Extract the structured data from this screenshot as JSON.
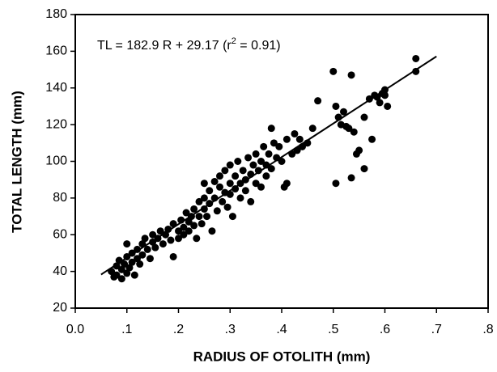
{
  "chart_data": {
    "type": "scatter",
    "xlabel": "RADIUS OF OTOLITH (mm)",
    "ylabel": "TOTAL LENGTH (mm)",
    "annotation": [
      "TL = 182.9 R  + 29.17 (r",
      "2",
      " = 0.91)"
    ],
    "color": "#000000",
    "xlim": [
      0,
      0.8
    ],
    "xticks": [
      {
        "value": 0,
        "label": "0.0"
      },
      {
        "value": 0.1,
        "label": ".1"
      },
      {
        "value": 0.2,
        "label": ".2"
      },
      {
        "value": 0.3,
        "label": ".3"
      },
      {
        "value": 0.4,
        "label": ".4"
      },
      {
        "value": 0.5,
        "label": ".5"
      },
      {
        "value": 0.6,
        "label": ".6"
      },
      {
        "value": 0.7,
        "label": ".7"
      },
      {
        "value": 0.8,
        "label": ".8"
      }
    ],
    "ylim": [
      20,
      180
    ],
    "yticks": [
      20,
      40,
      60,
      80,
      100,
      120,
      140,
      160,
      180
    ],
    "fit_line": {
      "x": [
        0.05,
        0.7
      ],
      "y": [
        38.3,
        157.2
      ]
    },
    "x": [
      0.07,
      0.075,
      0.08,
      0.08,
      0.085,
      0.09,
      0.09,
      0.095,
      0.1,
      0.1,
      0.1,
      0.105,
      0.11,
      0.11,
      0.115,
      0.12,
      0.12,
      0.125,
      0.13,
      0.13,
      0.135,
      0.14,
      0.145,
      0.15,
      0.15,
      0.155,
      0.16,
      0.165,
      0.17,
      0.175,
      0.18,
      0.185,
      0.19,
      0.19,
      0.2,
      0.2,
      0.205,
      0.21,
      0.21,
      0.215,
      0.22,
      0.22,
      0.225,
      0.23,
      0.23,
      0.235,
      0.24,
      0.24,
      0.245,
      0.25,
      0.25,
      0.25,
      0.255,
      0.26,
      0.26,
      0.265,
      0.27,
      0.27,
      0.275,
      0.28,
      0.28,
      0.285,
      0.29,
      0.29,
      0.295,
      0.3,
      0.3,
      0.3,
      0.305,
      0.31,
      0.31,
      0.315,
      0.32,
      0.32,
      0.325,
      0.33,
      0.33,
      0.335,
      0.34,
      0.34,
      0.345,
      0.35,
      0.35,
      0.355,
      0.36,
      0.36,
      0.365,
      0.37,
      0.37,
      0.375,
      0.38,
      0.38,
      0.385,
      0.39,
      0.395,
      0.4,
      0.405,
      0.41,
      0.41,
      0.42,
      0.425,
      0.43,
      0.435,
      0.44,
      0.45,
      0.46,
      0.47,
      0.5,
      0.505,
      0.505,
      0.51,
      0.515,
      0.52,
      0.525,
      0.53,
      0.535,
      0.535,
      0.54,
      0.545,
      0.55,
      0.56,
      0.56,
      0.57,
      0.575,
      0.58,
      0.585,
      0.59,
      0.595,
      0.6,
      0.6,
      0.605,
      0.66,
      0.66
    ],
    "values": [
      40,
      37,
      43,
      38,
      46,
      41,
      36,
      44,
      48,
      39,
      55,
      42,
      50,
      45,
      38,
      52,
      47,
      44,
      55,
      49,
      58,
      52,
      47,
      56,
      60,
      53,
      58,
      62,
      55,
      60,
      63,
      57,
      48,
      66,
      62,
      58,
      68,
      64,
      60,
      72,
      67,
      62,
      70,
      74,
      65,
      58,
      78,
      70,
      66,
      80,
      74,
      88,
      70,
      84,
      77,
      62,
      89,
      80,
      73,
      86,
      92,
      78,
      95,
      83,
      75,
      88,
      98,
      82,
      70,
      92,
      85,
      100,
      88,
      80,
      95,
      90,
      84,
      102,
      93,
      78,
      98,
      88,
      104,
      95,
      100,
      86,
      108,
      98,
      92,
      104,
      118,
      96,
      110,
      102,
      108,
      100,
      86,
      112,
      88,
      104,
      115,
      106,
      112,
      108,
      110,
      118,
      133,
      149,
      88,
      130,
      124,
      120,
      127,
      119,
      118,
      147,
      91,
      116,
      104,
      106,
      124,
      96,
      134,
      112,
      136,
      135,
      132,
      137,
      139,
      136,
      130,
      156,
      149
    ]
  }
}
